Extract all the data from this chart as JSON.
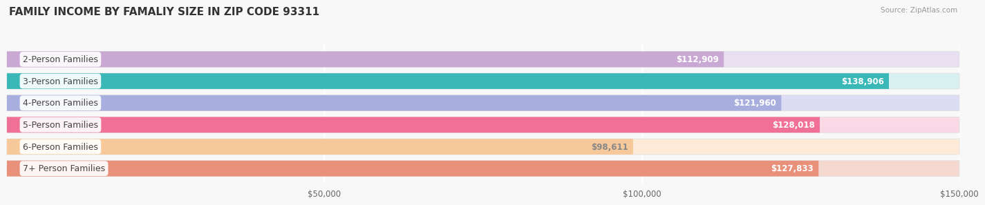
{
  "title": "FAMILY INCOME BY FAMALIY SIZE IN ZIP CODE 93311",
  "source": "Source: ZipAtlas.com",
  "categories": [
    "2-Person Families",
    "3-Person Families",
    "4-Person Families",
    "5-Person Families",
    "6-Person Families",
    "7+ Person Families"
  ],
  "values": [
    112909,
    138906,
    121960,
    128018,
    98611,
    127833
  ],
  "bar_colors": [
    "#c9a8d4",
    "#3ab8b8",
    "#a8aedd",
    "#f07098",
    "#f7c89a",
    "#e8907a"
  ],
  "bar_bg_colors": [
    "#e8e0f0",
    "#d8f0f0",
    "#dcddf2",
    "#fad8e5",
    "#fdebd8",
    "#f5d8d0"
  ],
  "dot_colors": [
    "#b070c0",
    "#259898",
    "#8888cc",
    "#e04878",
    "#e8a060",
    "#d06858"
  ],
  "value_labels": [
    "$112,909",
    "$138,906",
    "$121,960",
    "$128,018",
    "$98,611",
    "$127,833"
  ],
  "value_label_colors": [
    "white",
    "white",
    "white",
    "white",
    "#888888",
    "white"
  ],
  "xlim": [
    0,
    150000
  ],
  "xticks": [
    50000,
    100000,
    150000
  ],
  "xticklabels": [
    "$50,000",
    "$100,000",
    "$150,000"
  ],
  "background_color": "#f8f8f8",
  "label_fontsize": 9,
  "value_fontsize": 8.5,
  "title_fontsize": 11
}
